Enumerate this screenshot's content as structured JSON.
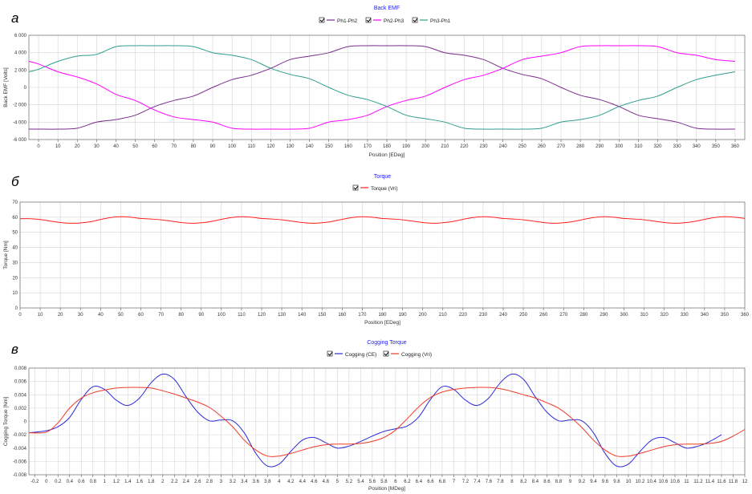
{
  "chart_data": [
    {
      "panel_letter": "а",
      "type": "line",
      "title": "Back EMF",
      "xlabel": "Position [EDeg]",
      "ylabel": "Back EMF [Volts]",
      "xlim": [
        -5,
        365
      ],
      "ylim": [
        -6000,
        6000
      ],
      "x_ticks": [
        0,
        10,
        20,
        30,
        40,
        50,
        60,
        70,
        80,
        90,
        100,
        110,
        120,
        130,
        140,
        150,
        160,
        170,
        180,
        190,
        200,
        210,
        220,
        230,
        240,
        250,
        260,
        270,
        280,
        290,
        300,
        310,
        320,
        330,
        340,
        350,
        360
      ],
      "y_ticks": [
        -6000,
        -4000,
        -2000,
        0,
        2000,
        4000,
        6000
      ],
      "y_tick_labels": [
        "-6 000",
        "-4 000",
        "-2 000",
        "0",
        "2 000",
        "4 000",
        "6 000"
      ],
      "grid": true,
      "legend": "top-center",
      "series": [
        {
          "name": "Ph1-Ph2",
          "color": "#7b2c8c",
          "x": [
            -5,
            0,
            10,
            20,
            30,
            40,
            50,
            60,
            70,
            80,
            90,
            100,
            110,
            120,
            130,
            140,
            150,
            160,
            170,
            180,
            190,
            200,
            210,
            220,
            230,
            240,
            250,
            260,
            270,
            280,
            290,
            300,
            310,
            320,
            330,
            340,
            350,
            360
          ],
          "values": [
            -4800,
            -4800,
            -4800,
            -4700,
            -4000,
            -3700,
            -3200,
            -2200,
            -1500,
            -1000,
            0,
            900,
            1400,
            2200,
            3200,
            3600,
            4000,
            4700,
            4800,
            4800,
            4800,
            4700,
            4000,
            3700,
            3200,
            2200,
            1500,
            1000,
            0,
            -900,
            -1400,
            -2200,
            -3200,
            -3600,
            -4000,
            -4700,
            -4800,
            -4800
          ]
        },
        {
          "name": "Ph2-Ph3",
          "color": "#ff00ff",
          "x": [
            -5,
            0,
            10,
            20,
            30,
            40,
            50,
            60,
            70,
            80,
            90,
            100,
            110,
            120,
            130,
            140,
            150,
            160,
            170,
            180,
            190,
            200,
            210,
            220,
            230,
            240,
            250,
            260,
            270,
            280,
            290,
            300,
            310,
            320,
            330,
            340,
            350,
            360
          ],
          "values": [
            3000,
            2700,
            1800,
            1200,
            400,
            -800,
            -1500,
            -2600,
            -3400,
            -3700,
            -4000,
            -4700,
            -4800,
            -4800,
            -4800,
            -4700,
            -4000,
            -3700,
            -3200,
            -2200,
            -1500,
            -1000,
            0,
            900,
            1400,
            2200,
            3200,
            3600,
            4000,
            4700,
            4800,
            4800,
            4800,
            4700,
            4000,
            3700,
            3200,
            3000
          ]
        },
        {
          "name": "Ph3-Ph1",
          "color": "#2e9e8e",
          "x": [
            -5,
            0,
            10,
            20,
            30,
            40,
            50,
            60,
            70,
            80,
            90,
            100,
            110,
            120,
            130,
            140,
            150,
            160,
            170,
            180,
            190,
            200,
            210,
            220,
            230,
            240,
            250,
            260,
            270,
            280,
            290,
            300,
            310,
            320,
            330,
            340,
            350,
            360
          ],
          "values": [
            1800,
            2100,
            3000,
            3600,
            3800,
            4700,
            4800,
            4800,
            4800,
            4700,
            4000,
            3700,
            3200,
            2200,
            1500,
            1000,
            0,
            -900,
            -1400,
            -2200,
            -3200,
            -3600,
            -4000,
            -4700,
            -4800,
            -4800,
            -4800,
            -4700,
            -4000,
            -3700,
            -3200,
            -2200,
            -1500,
            -1000,
            0,
            900,
            1400,
            1800
          ]
        }
      ]
    },
    {
      "panel_letter": "б",
      "type": "line",
      "title": "Torque",
      "xlabel": "Position [EDeg]",
      "ylabel": "Torque [Nm]",
      "xlim": [
        0,
        360
      ],
      "ylim": [
        0,
        70
      ],
      "x_ticks": [
        0,
        10,
        20,
        30,
        40,
        50,
        60,
        70,
        80,
        90,
        100,
        110,
        120,
        130,
        140,
        150,
        160,
        170,
        180,
        190,
        200,
        210,
        220,
        230,
        240,
        250,
        260,
        270,
        280,
        290,
        300,
        310,
        320,
        330,
        340,
        350,
        360
      ],
      "y_ticks": [
        0,
        10,
        20,
        30,
        40,
        50,
        60,
        70
      ],
      "y_tick_labels": [
        "0",
        "10",
        "20",
        "30",
        "40",
        "50",
        "60",
        "70"
      ],
      "grid": true,
      "legend": "top-center",
      "series": [
        {
          "name": "Torque (Vri)",
          "color": "#ff2020",
          "x": [
            0,
            5,
            10,
            15,
            20,
            25,
            30,
            35,
            40,
            45,
            50,
            55,
            60,
            65,
            70,
            75,
            80,
            85,
            90,
            95,
            100,
            105,
            110,
            115,
            120,
            125,
            130,
            135,
            140,
            145,
            150,
            155,
            160,
            165,
            170,
            175,
            180,
            185,
            190,
            195,
            200,
            205,
            210,
            215,
            220,
            225,
            230,
            235,
            240,
            245,
            250,
            255,
            260,
            265,
            270,
            275,
            280,
            285,
            290,
            295,
            300,
            305,
            310,
            315,
            320,
            325,
            330,
            335,
            340,
            345,
            350,
            355,
            360
          ],
          "values": [
            59,
            59,
            58.5,
            57.5,
            56.5,
            56,
            56.2,
            57,
            58.5,
            59.8,
            60.3,
            60,
            59.2,
            58.8,
            58.3,
            57.4,
            56.5,
            56,
            56.3,
            57.2,
            58.6,
            59.8,
            60.3,
            60,
            59.2,
            58.8,
            58.3,
            57.4,
            56.5,
            56,
            56.3,
            57.2,
            58.6,
            59.8,
            60.3,
            60,
            59.2,
            58.8,
            58.3,
            57.4,
            56.5,
            56,
            56.3,
            57.2,
            58.6,
            59.8,
            60.3,
            60,
            59.2,
            58.8,
            58.3,
            57.4,
            56.5,
            56,
            56.3,
            57.2,
            58.6,
            59.8,
            60.3,
            60,
            59.2,
            58.8,
            58.3,
            57.4,
            56.5,
            56,
            56.3,
            57.2,
            58.6,
            59.8,
            60.3,
            60,
            59.2
          ]
        }
      ]
    },
    {
      "panel_letter": "в",
      "type": "line",
      "title": "Cogging Torque",
      "xlabel": "Position [MDeg]",
      "ylabel": "Cogging Torque [Nm]",
      "xlim": [
        -0.3,
        12
      ],
      "ylim": [
        -0.008,
        0.008
      ],
      "x_ticks": [
        -0.2,
        0,
        0.2,
        0.4,
        0.6,
        0.8,
        1,
        1.2,
        1.4,
        1.6,
        1.8,
        2,
        2.2,
        2.4,
        2.6,
        2.8,
        3,
        3.2,
        3.4,
        3.6,
        3.8,
        4,
        4.2,
        4.4,
        4.6,
        4.8,
        5,
        5.2,
        5.4,
        5.6,
        5.8,
        6,
        6.2,
        6.4,
        6.6,
        6.8,
        7,
        7.2,
        7.4,
        7.6,
        7.8,
        8,
        8.2,
        8.4,
        8.6,
        8.8,
        9,
        9.2,
        9.4,
        9.6,
        9.8,
        10,
        10.2,
        10.4,
        10.6,
        10.8,
        11,
        11.2,
        11.4,
        11.6,
        11.8,
        12
      ],
      "x_tick_labels": [
        "-0.2",
        "0",
        "0.2",
        "0.4",
        "0.6",
        "0.8",
        "1",
        "1.2",
        "1.4",
        "1.6",
        "1.8",
        "2",
        "2.2",
        "2.4",
        "2.6",
        "2.8",
        "3",
        "3.2",
        "3.4",
        "3.6",
        "3.8",
        "4",
        "4.2",
        "4.4",
        "4.6",
        "4.8",
        "5",
        "5.2",
        "5.4",
        "5.6",
        "5.8",
        "6",
        "6.2",
        "6.4",
        "6.6",
        "6.8",
        "7",
        "7.2",
        "7.4",
        "7.6",
        "7.8",
        "8",
        "8.2",
        "8.4",
        "8.6",
        "8.8",
        "9",
        "9.2",
        "9.4",
        "9.6",
        "9.8",
        "10",
        "10.2",
        "10.4",
        "10.6",
        "10.8",
        "11",
        "11.2",
        "11.4",
        "11.6",
        "11.8",
        "12"
      ],
      "y_ticks": [
        -0.008,
        -0.006,
        -0.004,
        -0.002,
        0,
        0.002,
        0.004,
        0.006,
        0.008
      ],
      "y_tick_labels": [
        "-0.008",
        "-0.006",
        "-0.004",
        "-0.002",
        "0",
        "0.002",
        "0.004",
        "0.006",
        "0.008"
      ],
      "grid": true,
      "legend": "top-center",
      "series": [
        {
          "name": "Cogging (CE)",
          "color": "#2b2bd6",
          "x": [
            -0.3,
            0,
            0.2,
            0.4,
            0.6,
            0.8,
            1.0,
            1.2,
            1.4,
            1.6,
            1.8,
            2.0,
            2.2,
            2.4,
            2.6,
            2.8,
            3.0,
            3.2,
            3.4,
            3.6,
            3.8,
            4.0,
            4.2,
            4.4,
            4.6,
            4.8,
            5.0,
            5.2,
            5.4,
            5.6,
            5.8,
            6.0,
            6.2,
            6.4,
            6.6,
            6.8,
            7.0,
            7.2,
            7.4,
            7.6,
            7.8,
            8.0,
            8.2,
            8.4,
            8.6,
            8.8,
            9.0,
            9.2,
            9.4,
            9.6,
            9.8,
            10.0,
            10.2,
            10.4,
            10.6,
            10.8,
            11.0,
            11.2,
            11.4,
            11.6
          ],
          "values": [
            -0.0017,
            -0.0014,
            -0.0008,
            0.0006,
            0.0033,
            0.0052,
            0.0048,
            0.0032,
            0.0024,
            0.0035,
            0.0058,
            0.0071,
            0.0063,
            0.0037,
            0.0014,
            0.0001,
            0.0002,
            0.0001,
            -0.0017,
            -0.0048,
            -0.0067,
            -0.0064,
            -0.0045,
            -0.0028,
            -0.0024,
            -0.0032,
            -0.004,
            -0.0037,
            -0.003,
            -0.0022,
            -0.0015,
            -0.0011,
            -0.0007,
            0.0007,
            0.0033,
            0.0052,
            0.0048,
            0.0032,
            0.0024,
            0.0035,
            0.0058,
            0.0071,
            0.0063,
            0.0037,
            0.0014,
            0.0001,
            0.0002,
            0.0001,
            -0.0017,
            -0.0048,
            -0.0067,
            -0.0064,
            -0.0045,
            -0.0028,
            -0.0024,
            -0.0032,
            -0.004,
            -0.0037,
            -0.003,
            -0.002
          ]
        },
        {
          "name": "Cogging (Vri)",
          "color": "#ee3b2a",
          "x": [
            -0.3,
            0,
            0.2,
            0.4,
            0.6,
            0.8,
            1.0,
            1.2,
            1.4,
            1.6,
            1.8,
            2.0,
            2.2,
            2.4,
            2.6,
            2.8,
            3.0,
            3.2,
            3.4,
            3.6,
            3.8,
            4.0,
            4.2,
            4.4,
            4.6,
            4.8,
            5.0,
            5.2,
            5.4,
            5.6,
            5.8,
            6.0,
            6.2,
            6.4,
            6.6,
            6.8,
            7.0,
            7.2,
            7.4,
            7.6,
            7.8,
            8.0,
            8.2,
            8.4,
            8.6,
            8.8,
            9.0,
            9.2,
            9.4,
            9.6,
            9.8,
            10.0,
            10.2,
            10.4,
            10.6,
            10.8,
            11.0,
            11.2,
            11.4,
            11.6,
            11.8,
            12.0
          ],
          "values": [
            -0.0017,
            -0.0016,
            -0.0002,
            0.002,
            0.0035,
            0.0043,
            0.0047,
            0.005,
            0.0051,
            0.0051,
            0.005,
            0.0046,
            0.0041,
            0.0035,
            0.0029,
            0.0021,
            0.0008,
            -0.0008,
            -0.0028,
            -0.0043,
            -0.0052,
            -0.0052,
            -0.0048,
            -0.0043,
            -0.0038,
            -0.0035,
            -0.0034,
            -0.0034,
            -0.0033,
            -0.003,
            -0.0024,
            -0.0013,
            0.0004,
            0.0022,
            0.0036,
            0.0044,
            0.0048,
            0.005,
            0.0051,
            0.0051,
            0.0049,
            0.0045,
            0.004,
            0.0035,
            0.0028,
            0.002,
            0.0007,
            -0.0009,
            -0.0028,
            -0.0043,
            -0.0052,
            -0.0052,
            -0.0048,
            -0.0043,
            -0.0038,
            -0.0035,
            -0.0034,
            -0.0034,
            -0.0033,
            -0.003,
            -0.0022,
            -0.0012
          ]
        }
      ]
    }
  ]
}
